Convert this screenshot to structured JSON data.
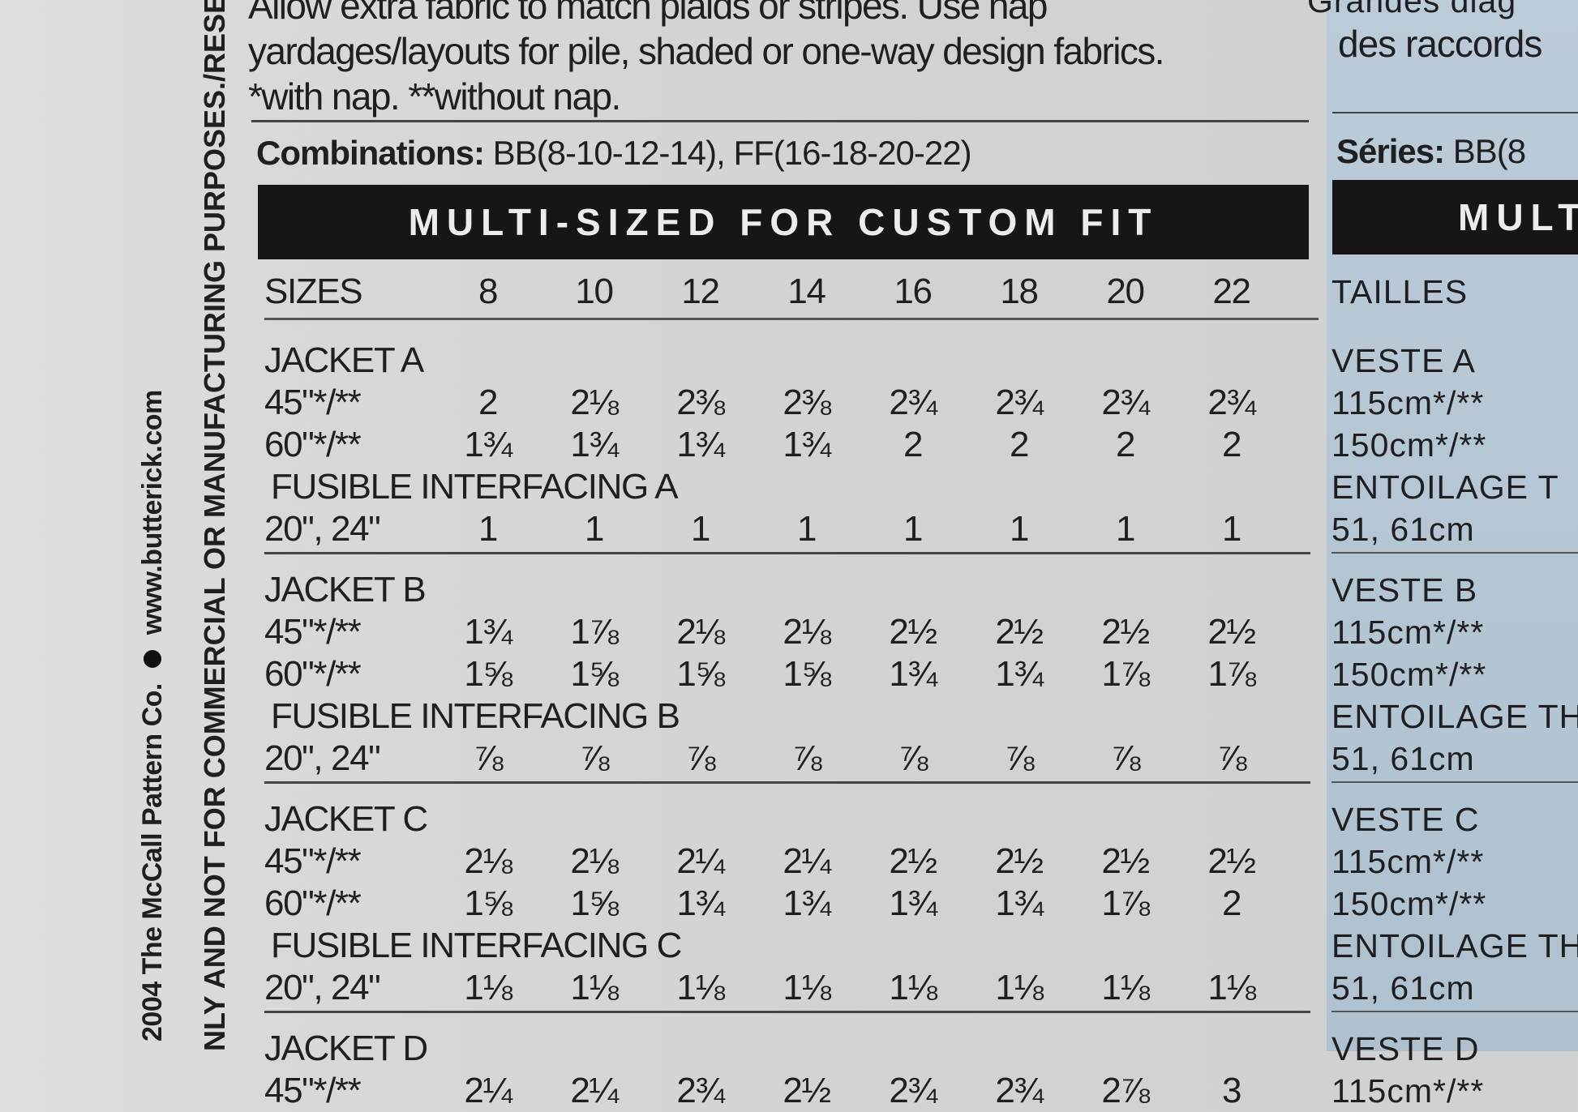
{
  "notes": {
    "line1": "Allow extra fabric to match plaids or stripes. Use nap",
    "line2": "yardages/layouts for pile, shaded or one-way design fabrics.",
    "line3": "*with nap. **without nap."
  },
  "combinations": {
    "label": "Combinations:",
    "value": " BB(8-10-12-14), FF(16-18-20-22)"
  },
  "banner": "MULTI-SIZED FOR CUSTOM FIT",
  "sizes": {
    "label": "SIZES",
    "values": [
      "8",
      "10",
      "12",
      "14",
      "16",
      "18",
      "20",
      "22"
    ]
  },
  "sections": [
    {
      "title": "JACKET A",
      "rows": [
        {
          "label": "45\"*/**",
          "values": [
            "2",
            "2⅛",
            "2⅜",
            "2⅜",
            "2¾",
            "2¾",
            "2¾",
            "2¾"
          ]
        },
        {
          "label": "60\"*/**",
          "values": [
            "1¾",
            "1¾",
            "1¾",
            "1¾",
            "2",
            "2",
            "2",
            "2"
          ]
        },
        {
          "label": "FUSIBLE INTERFACING A",
          "values": []
        },
        {
          "label": "20\", 24\"",
          "values": [
            "1",
            "1",
            "1",
            "1",
            "1",
            "1",
            "1",
            "1"
          ]
        }
      ]
    },
    {
      "title": "JACKET B",
      "rows": [
        {
          "label": "45\"*/**",
          "values": [
            "1¾",
            "1⅞",
            "2⅛",
            "2⅛",
            "2½",
            "2½",
            "2½",
            "2½"
          ]
        },
        {
          "label": "60\"*/**",
          "values": [
            "1⅝",
            "1⅝",
            "1⅝",
            "1⅝",
            "1¾",
            "1¾",
            "1⅞",
            "1⅞"
          ]
        },
        {
          "label": "FUSIBLE INTERFACING B",
          "values": []
        },
        {
          "label": "20\", 24\"",
          "values": [
            "⅞",
            "⅞",
            "⅞",
            "⅞",
            "⅞",
            "⅞",
            "⅞",
            "⅞"
          ]
        }
      ]
    },
    {
      "title": "JACKET C",
      "rows": [
        {
          "label": "45\"*/**",
          "values": [
            "2⅛",
            "2⅛",
            "2¼",
            "2¼",
            "2½",
            "2½",
            "2½",
            "2½"
          ]
        },
        {
          "label": "60\"*/**",
          "values": [
            "1⅝",
            "1⅝",
            "1¾",
            "1¾",
            "1¾",
            "1¾",
            "1⅞",
            "2"
          ]
        },
        {
          "label": "FUSIBLE INTERFACING C",
          "values": []
        },
        {
          "label": "20\", 24\"",
          "values": [
            "1⅛",
            "1⅛",
            "1⅛",
            "1⅛",
            "1⅛",
            "1⅛",
            "1⅛",
            "1⅛"
          ]
        }
      ]
    },
    {
      "title": "JACKET D",
      "rows": [
        {
          "label": "45\"*/**",
          "values": [
            "2¼",
            "2¼",
            "2¾",
            "2½",
            "2¾",
            "2¾",
            "2⅞",
            "3"
          ]
        }
      ]
    }
  ],
  "french": {
    "note1": "Grandes diag",
    "note2": "des raccords",
    "series_label": "Séries:",
    "series_value": " BB(8",
    "banner": "MULT",
    "sizes_label": "TAILLES",
    "sections": [
      {
        "title": "VESTE A",
        "rows": [
          "115cm*/**",
          "150cm*/**",
          "ENTOILAGE T",
          "51, 61cm"
        ]
      },
      {
        "title": "VESTE B",
        "rows": [
          "115cm*/**",
          "150cm*/**",
          "ENTOILAGE TH",
          "51, 61cm"
        ]
      },
      {
        "title": "VESTE C",
        "rows": [
          "115cm*/**",
          "150cm*/**",
          "ENTOILAGE TH",
          "51, 61cm"
        ]
      },
      {
        "title": "VESTE D",
        "rows": [
          "115cm*/**"
        ]
      }
    ]
  },
  "side": {
    "copyright": "2004 The McCall Pattern Co.",
    "website": "www.butterick.com",
    "notice": "NLY AND NOT FOR COMMERCIAL OR MANUFACTURING PURPOSES./RESE"
  }
}
